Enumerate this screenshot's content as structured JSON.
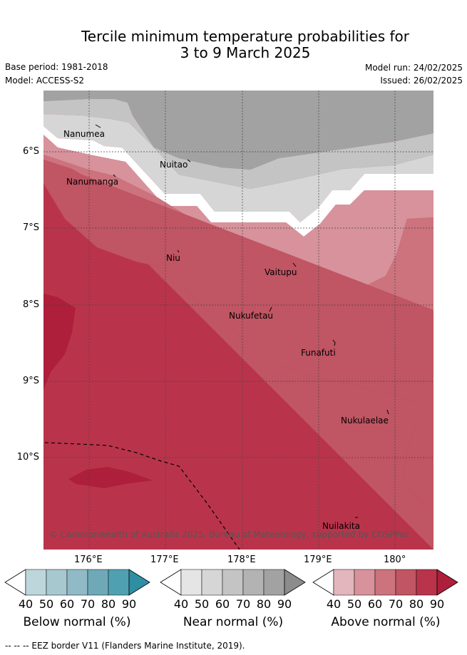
{
  "header": {
    "title_line1": "Tercile minimum temperature probabilities for",
    "title_line2": "3 to 9 March 2025",
    "base_period": "Base period: 1981-2018",
    "model": "Model: ACCESS-S2",
    "model_run": "Model run: 24/02/2025",
    "issued": "Issued: 26/02/2025"
  },
  "map": {
    "copyright": "© Commonwealth of Australia 2025, Bureau of Meteorology, supported by COSPPac",
    "place_names": [
      "Nanumea",
      "Nuitao",
      "Nanumanga",
      "Niu",
      "Vaitupu",
      "Nukufetau",
      "Funafuti",
      "Nukulaelae",
      "Nuilakita"
    ]
  },
  "chart_data": {
    "type": "heatmap",
    "title": "Tercile minimum temperature probabilities for 3 to 9 March 2025",
    "x_ticks": [
      "176°E",
      "177°E",
      "178°E",
      "179°E",
      "180°"
    ],
    "y_ticks": [
      "6°S",
      "7°S",
      "8°S",
      "9°S",
      "10°S"
    ],
    "xlim": [
      175.4,
      180.5
    ],
    "ylim": [
      -11.2,
      -5.2
    ],
    "grid": true,
    "colorbars": [
      {
        "label": "Below normal (%)",
        "ticks": [
          "40",
          "50",
          "60",
          "70",
          "80",
          "90"
        ],
        "colors": [
          "#ffffff",
          "#bcd6dc",
          "#a7c8cf",
          "#8fbac6",
          "#6fa9b8",
          "#4fa1b2",
          "#2f8ea4"
        ]
      },
      {
        "label": "Near normal (%)",
        "ticks": [
          "40",
          "50",
          "60",
          "70",
          "80",
          "90"
        ],
        "colors": [
          "#ffffff",
          "#e5e5e5",
          "#d6d6d6",
          "#c4c4c4",
          "#b3b3b3",
          "#a2a2a2",
          "#8c8c8c"
        ]
      },
      {
        "label": "Above normal (%)",
        "ticks": [
          "40",
          "50",
          "60",
          "70",
          "80",
          "90"
        ],
        "colors": [
          "#ffffff",
          "#e2b6bc",
          "#d7929b",
          "#cc737e",
          "#c05563",
          "#b9344b",
          "#ad1f3a"
        ]
      }
    ],
    "legend_entries": [
      "EEZ border V11 (Flanders Marine Institute, 2019)."
    ]
  },
  "footer": {
    "legend_line": "--  --  -- EEZ border V11 (Flanders Marine Institute, 2019)."
  }
}
